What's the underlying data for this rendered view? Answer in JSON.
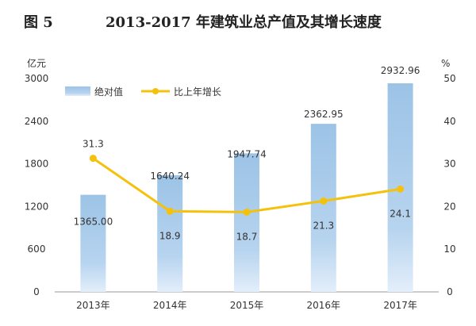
{
  "chart_data": {
    "type": "bar",
    "title_prefix": "图 5",
    "title": "2013-2017 年建筑业总产值及其增长速度",
    "left_unit": "亿元",
    "right_unit": "%",
    "categories": [
      "2013年",
      "2014年",
      "2015年",
      "2016年",
      "2017年"
    ],
    "left_ylim": [
      0,
      3000
    ],
    "left_ticks": [
      0,
      600,
      1200,
      1800,
      2400,
      3000
    ],
    "right_ylim": [
      0,
      50
    ],
    "right_ticks": [
      0,
      10,
      20,
      30,
      40,
      50
    ],
    "series": [
      {
        "name": "绝对值",
        "kind": "bar",
        "axis": "left",
        "values": [
          1365.0,
          1640.24,
          1947.74,
          2362.95,
          2932.96
        ],
        "labels": [
          "1365.00",
          "1640.24",
          "1947.74",
          "2362.95",
          "2932.96"
        ]
      },
      {
        "name": "比上年增长",
        "kind": "line",
        "axis": "right",
        "values": [
          31.3,
          18.9,
          18.7,
          21.3,
          24.1
        ],
        "labels": [
          "31.3",
          "18.9",
          "18.7",
          "21.3",
          "24.1"
        ]
      }
    ],
    "colors": {
      "bar": "#9cc3e6",
      "bar_light": "#dbe9f7",
      "line": "#f4c20d",
      "axis": "#999999"
    },
    "legend_position": "top-left",
    "grid": false
  }
}
